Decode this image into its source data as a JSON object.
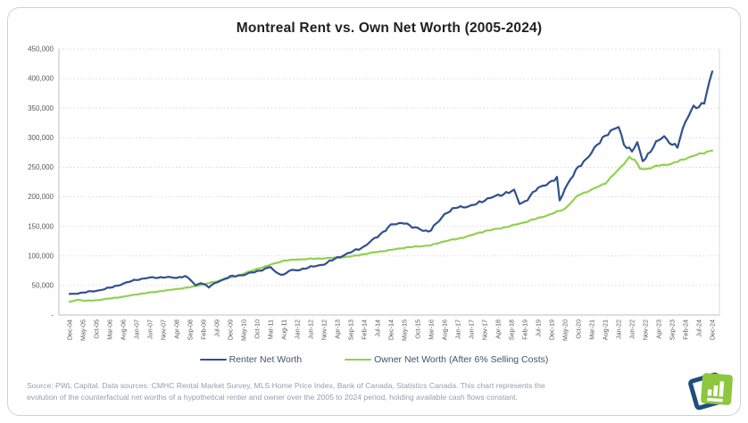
{
  "title": "Montreal Rent vs. Own Net Worth (2005-2024)",
  "footer": {
    "line1": "Source: PWL Capital. Data sources: CMHC Rental Market Survey, MLS Home Price Index, Bank of Canada, Statistics Canada. This chart represents the",
    "line2": "evolution of the counterfactual net worths of a hypothetical renter and owner over the 2005 to 2024 period, holding available cash flows constant."
  },
  "logo": {
    "icon": "bar-chart-logo",
    "back_color": "#1f4e79",
    "front_color": "#8dc63f"
  },
  "colors": {
    "renter_line": "#30508f",
    "owner_line": "#92d050",
    "gridline": "#d9d9d9",
    "axis": "#bfbfbf",
    "axis_text": "#595959",
    "legend_text": "#44546a",
    "footer_text": "#93a0ac",
    "card_border": "#cdd2d8"
  },
  "chart_data": {
    "type": "line",
    "title": "Montreal Rent vs. Own Net Worth (2005-2024)",
    "xlabel": "",
    "ylabel": "",
    "grid": "horizontal-dotted",
    "legend_position": "bottom",
    "months_span": 240,
    "x_start": "Dec-04",
    "x_end": "Dec-24",
    "x_tick_interval_months": 5,
    "x_tick_labels": [
      "Dec-04",
      "May-05",
      "Oct-05",
      "Mar-06",
      "Aug-06",
      "Jan-07",
      "Jun-07",
      "Nov-07",
      "Apr-08",
      "Sep-08",
      "Feb-09",
      "Jul-09",
      "Dec-09",
      "May-10",
      "Oct-10",
      "Mar-11",
      "Aug-11",
      "Jan-12",
      "Jun-12",
      "Nov-12",
      "Apr-13",
      "Sep-13",
      "Feb-14",
      "Jul-14",
      "Dec-14",
      "May-15",
      "Oct-15",
      "Mar-16",
      "Aug-16",
      "Jan-17",
      "Jun-17",
      "Nov-17",
      "Apr-18",
      "Sep-18",
      "Feb-19",
      "Jul-19",
      "Dec-19",
      "May-20",
      "Oct-20",
      "Mar-21",
      "Aug-21",
      "Jan-22",
      "Jun-22",
      "Nov-22",
      "Apr-23",
      "Sep-23",
      "Feb-24",
      "Jul-24",
      "Dec-24"
    ],
    "y_axis": {
      "min": 0,
      "max": 450000,
      "step": 50000,
      "labels": [
        "450,000",
        "400,000",
        "350,000",
        "300,000",
        "250,000",
        "200,000",
        "150,000",
        "100,000",
        "50,000",
        "-"
      ]
    },
    "series": [
      {
        "name": "Renter Net Worth",
        "color": "#30508f",
        "keypoints": [
          [
            0,
            35000
          ],
          [
            5,
            38000
          ],
          [
            10,
            41000
          ],
          [
            15,
            46000
          ],
          [
            20,
            53000
          ],
          [
            25,
            60000
          ],
          [
            30,
            63000
          ],
          [
            35,
            64000
          ],
          [
            40,
            63000
          ],
          [
            43,
            66000
          ],
          [
            45,
            60000
          ],
          [
            47,
            50000
          ],
          [
            49,
            55000
          ],
          [
            52,
            47000
          ],
          [
            55,
            56000
          ],
          [
            60,
            65000
          ],
          [
            65,
            68000
          ],
          [
            70,
            74000
          ],
          [
            75,
            81000
          ],
          [
            77,
            72000
          ],
          [
            80,
            68000
          ],
          [
            82,
            75000
          ],
          [
            85,
            76000
          ],
          [
            90,
            81000
          ],
          [
            95,
            86000
          ],
          [
            100,
            97000
          ],
          [
            105,
            106000
          ],
          [
            110,
            116000
          ],
          [
            115,
            133000
          ],
          [
            120,
            152000
          ],
          [
            125,
            157000
          ],
          [
            128,
            148000
          ],
          [
            130,
            147000
          ],
          [
            134,
            141000
          ],
          [
            135,
            144000
          ],
          [
            140,
            171000
          ],
          [
            145,
            183000
          ],
          [
            150,
            184000
          ],
          [
            155,
            195000
          ],
          [
            160,
            202000
          ],
          [
            163,
            207000
          ],
          [
            166,
            210000
          ],
          [
            168,
            189000
          ],
          [
            170,
            192000
          ],
          [
            175,
            215000
          ],
          [
            178,
            222000
          ],
          [
            180,
            225000
          ],
          [
            182,
            232000
          ],
          [
            183,
            193000
          ],
          [
            185,
            215000
          ],
          [
            190,
            250000
          ],
          [
            195,
            275000
          ],
          [
            200,
            305000
          ],
          [
            205,
            318000
          ],
          [
            207,
            290000
          ],
          [
            210,
            277000
          ],
          [
            212,
            290000
          ],
          [
            214,
            262000
          ],
          [
            215,
            266000
          ],
          [
            220,
            296000
          ],
          [
            222,
            303000
          ],
          [
            225,
            288000
          ],
          [
            227,
            284000
          ],
          [
            230,
            330000
          ],
          [
            233,
            352000
          ],
          [
            235,
            350000
          ],
          [
            237,
            362000
          ],
          [
            240,
            413000
          ]
        ]
      },
      {
        "name": "Owner Net Worth (After 6% Selling Costs)",
        "color": "#92d050",
        "keypoints": [
          [
            0,
            22000
          ],
          [
            3,
            26000
          ],
          [
            6,
            24000
          ],
          [
            10,
            25000
          ],
          [
            15,
            28000
          ],
          [
            20,
            31000
          ],
          [
            25,
            35000
          ],
          [
            30,
            38000
          ],
          [
            35,
            41000
          ],
          [
            40,
            44000
          ],
          [
            45,
            47000
          ],
          [
            50,
            52000
          ],
          [
            55,
            57000
          ],
          [
            60,
            63000
          ],
          [
            65,
            70000
          ],
          [
            70,
            78000
          ],
          [
            75,
            85000
          ],
          [
            80,
            92000
          ],
          [
            85,
            94000
          ],
          [
            90,
            95000
          ],
          [
            95,
            96000
          ],
          [
            100,
            97000
          ],
          [
            105,
            99000
          ],
          [
            110,
            103000
          ],
          [
            115,
            107000
          ],
          [
            120,
            110000
          ],
          [
            125,
            114000
          ],
          [
            130,
            116000
          ],
          [
            135,
            118000
          ],
          [
            140,
            125000
          ],
          [
            145,
            129000
          ],
          [
            150,
            135000
          ],
          [
            155,
            142000
          ],
          [
            160,
            146000
          ],
          [
            165,
            151000
          ],
          [
            170,
            157000
          ],
          [
            175,
            164000
          ],
          [
            180,
            171000
          ],
          [
            185,
            180000
          ],
          [
            190,
            203000
          ],
          [
            195,
            212000
          ],
          [
            200,
            223000
          ],
          [
            205,
            246000
          ],
          [
            209,
            267000
          ],
          [
            211,
            262000
          ],
          [
            213,
            248000
          ],
          [
            215,
            247000
          ],
          [
            218,
            250000
          ],
          [
            220,
            253000
          ],
          [
            225,
            256000
          ],
          [
            230,
            265000
          ],
          [
            235,
            272000
          ],
          [
            240,
            279000
          ]
        ]
      }
    ]
  }
}
